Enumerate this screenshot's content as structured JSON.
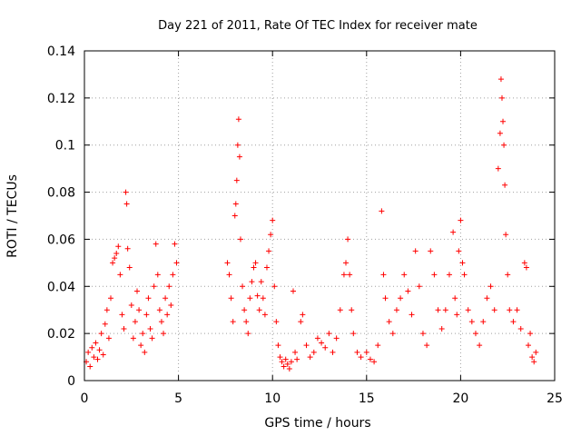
{
  "chart_data": {
    "type": "scatter",
    "title": "Day 221 of 2011, Rate Of TEC Index for receiver mate",
    "xlabel": "GPS time / hours",
    "ylabel": "ROTI / TECUs",
    "xlim": [
      0,
      25
    ],
    "ylim": [
      0,
      0.14
    ],
    "x_ticks": [
      0,
      5,
      10,
      15,
      20,
      25
    ],
    "x_tick_labels": [
      "0",
      "5",
      "10",
      "15",
      "20",
      "25"
    ],
    "y_ticks": [
      0,
      0.02,
      0.04,
      0.06,
      0.08,
      0.1,
      0.12,
      0.14
    ],
    "y_tick_labels": [
      "0",
      "0.02",
      "0.04",
      "0.06",
      "0.08",
      "0.1",
      "0.12",
      "0.14"
    ],
    "grid": true,
    "marker": "+",
    "color": "#ff0000",
    "series": [
      {
        "name": "ROTI",
        "points": [
          [
            0.1,
            0.008
          ],
          [
            0.2,
            0.012
          ],
          [
            0.3,
            0.006
          ],
          [
            0.4,
            0.014
          ],
          [
            0.5,
            0.01
          ],
          [
            0.6,
            0.016
          ],
          [
            0.7,
            0.009
          ],
          [
            0.8,
            0.013
          ],
          [
            0.9,
            0.02
          ],
          [
            1.0,
            0.011
          ],
          [
            1.1,
            0.024
          ],
          [
            1.2,
            0.03
          ],
          [
            1.3,
            0.018
          ],
          [
            1.4,
            0.035
          ],
          [
            1.5,
            0.05
          ],
          [
            1.6,
            0.052
          ],
          [
            1.7,
            0.054
          ],
          [
            1.8,
            0.057
          ],
          [
            1.9,
            0.045
          ],
          [
            2.0,
            0.028
          ],
          [
            2.1,
            0.022
          ],
          [
            2.2,
            0.08
          ],
          [
            2.25,
            0.075
          ],
          [
            2.3,
            0.056
          ],
          [
            2.4,
            0.048
          ],
          [
            2.5,
            0.032
          ],
          [
            2.6,
            0.018
          ],
          [
            2.7,
            0.025
          ],
          [
            2.8,
            0.038
          ],
          [
            2.9,
            0.03
          ],
          [
            3.0,
            0.015
          ],
          [
            3.1,
            0.02
          ],
          [
            3.2,
            0.012
          ],
          [
            3.3,
            0.028
          ],
          [
            3.4,
            0.035
          ],
          [
            3.5,
            0.022
          ],
          [
            3.6,
            0.018
          ],
          [
            3.7,
            0.04
          ],
          [
            3.8,
            0.058
          ],
          [
            3.9,
            0.045
          ],
          [
            4.0,
            0.03
          ],
          [
            4.1,
            0.025
          ],
          [
            4.2,
            0.02
          ],
          [
            4.3,
            0.035
          ],
          [
            4.4,
            0.028
          ],
          [
            4.5,
            0.04
          ],
          [
            4.6,
            0.032
          ],
          [
            4.7,
            0.045
          ],
          [
            4.8,
            0.058
          ],
          [
            4.9,
            0.05
          ],
          [
            7.6,
            0.05
          ],
          [
            7.7,
            0.045
          ],
          [
            7.8,
            0.035
          ],
          [
            7.9,
            0.025
          ],
          [
            8.0,
            0.07
          ],
          [
            8.05,
            0.075
          ],
          [
            8.1,
            0.085
          ],
          [
            8.15,
            0.1
          ],
          [
            8.2,
            0.111
          ],
          [
            8.25,
            0.095
          ],
          [
            8.3,
            0.06
          ],
          [
            8.4,
            0.04
          ],
          [
            8.5,
            0.03
          ],
          [
            8.6,
            0.025
          ],
          [
            8.7,
            0.02
          ],
          [
            8.8,
            0.035
          ],
          [
            8.9,
            0.042
          ],
          [
            9.0,
            0.048
          ],
          [
            9.1,
            0.05
          ],
          [
            9.2,
            0.036
          ],
          [
            9.3,
            0.03
          ],
          [
            9.4,
            0.042
          ],
          [
            9.5,
            0.035
          ],
          [
            9.6,
            0.028
          ],
          [
            9.7,
            0.048
          ],
          [
            9.8,
            0.055
          ],
          [
            9.9,
            0.062
          ],
          [
            10.0,
            0.068
          ],
          [
            10.1,
            0.04
          ],
          [
            10.2,
            0.025
          ],
          [
            10.3,
            0.015
          ],
          [
            10.4,
            0.01
          ],
          [
            10.5,
            0.008
          ],
          [
            10.6,
            0.006
          ],
          [
            10.7,
            0.009
          ],
          [
            10.8,
            0.007
          ],
          [
            10.9,
            0.005
          ],
          [
            11.0,
            0.008
          ],
          [
            11.1,
            0.038
          ],
          [
            11.2,
            0.012
          ],
          [
            11.3,
            0.009
          ],
          [
            11.5,
            0.025
          ],
          [
            11.6,
            0.028
          ],
          [
            11.8,
            0.015
          ],
          [
            12.0,
            0.01
          ],
          [
            12.2,
            0.012
          ],
          [
            12.4,
            0.018
          ],
          [
            12.6,
            0.016
          ],
          [
            12.8,
            0.014
          ],
          [
            13.0,
            0.02
          ],
          [
            13.2,
            0.012
          ],
          [
            13.4,
            0.018
          ],
          [
            13.6,
            0.03
          ],
          [
            13.8,
            0.045
          ],
          [
            13.9,
            0.05
          ],
          [
            14.0,
            0.06
          ],
          [
            14.1,
            0.045
          ],
          [
            14.2,
            0.03
          ],
          [
            14.3,
            0.02
          ],
          [
            14.5,
            0.012
          ],
          [
            14.7,
            0.01
          ],
          [
            15.0,
            0.012
          ],
          [
            15.2,
            0.009
          ],
          [
            15.4,
            0.008
          ],
          [
            15.6,
            0.015
          ],
          [
            15.8,
            0.072
          ],
          [
            15.9,
            0.045
          ],
          [
            16.0,
            0.035
          ],
          [
            16.2,
            0.025
          ],
          [
            16.4,
            0.02
          ],
          [
            16.6,
            0.03
          ],
          [
            16.8,
            0.035
          ],
          [
            17.0,
            0.045
          ],
          [
            17.2,
            0.038
          ],
          [
            17.4,
            0.028
          ],
          [
            17.6,
            0.055
          ],
          [
            17.8,
            0.04
          ],
          [
            18.0,
            0.02
          ],
          [
            18.2,
            0.015
          ],
          [
            18.4,
            0.055
          ],
          [
            18.6,
            0.045
          ],
          [
            18.8,
            0.03
          ],
          [
            19.0,
            0.022
          ],
          [
            19.2,
            0.03
          ],
          [
            19.4,
            0.045
          ],
          [
            19.6,
            0.063
          ],
          [
            19.7,
            0.035
          ],
          [
            19.8,
            0.028
          ],
          [
            19.9,
            0.055
          ],
          [
            20.0,
            0.068
          ],
          [
            20.1,
            0.05
          ],
          [
            20.2,
            0.045
          ],
          [
            20.4,
            0.03
          ],
          [
            20.6,
            0.025
          ],
          [
            20.8,
            0.02
          ],
          [
            21.0,
            0.015
          ],
          [
            21.2,
            0.025
          ],
          [
            21.4,
            0.035
          ],
          [
            21.6,
            0.04
          ],
          [
            21.8,
            0.03
          ],
          [
            22.0,
            0.09
          ],
          [
            22.1,
            0.105
          ],
          [
            22.15,
            0.128
          ],
          [
            22.2,
            0.12
          ],
          [
            22.25,
            0.11
          ],
          [
            22.3,
            0.1
          ],
          [
            22.35,
            0.083
          ],
          [
            22.4,
            0.062
          ],
          [
            22.5,
            0.045
          ],
          [
            22.6,
            0.03
          ],
          [
            22.8,
            0.025
          ],
          [
            23.0,
            0.03
          ],
          [
            23.2,
            0.022
          ],
          [
            23.4,
            0.05
          ],
          [
            23.5,
            0.048
          ],
          [
            23.6,
            0.015
          ],
          [
            23.8,
            0.01
          ],
          [
            23.9,
            0.008
          ],
          [
            24.0,
            0.012
          ],
          [
            23.7,
            0.02
          ]
        ]
      }
    ]
  }
}
